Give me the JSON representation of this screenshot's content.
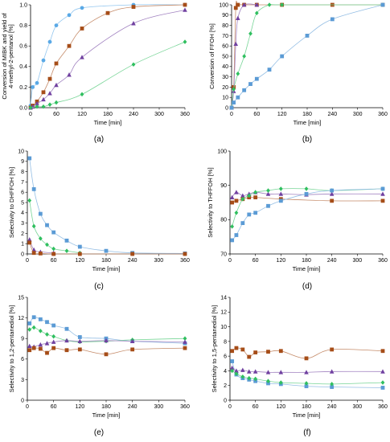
{
  "chart_data": [
    {
      "type": "scatter",
      "panel_label": "(a)",
      "xlabel": "Time [min]",
      "ylabel_lines": [
        "Conversion of MIBK and yield of",
        "4-methyl-2-pentanol [%]"
      ],
      "xlim": [
        0,
        360
      ],
      "ylim": [
        0,
        1
      ],
      "xticks": [
        0,
        60,
        120,
        180,
        240,
        300,
        360
      ],
      "yticks": [
        0,
        0.2,
        0.4,
        0.6,
        0.8,
        1
      ],
      "ytick_labels": [
        "0.0",
        "0.2",
        "0.4",
        "0.6",
        "0.8",
        "1.0"
      ],
      "grid": false,
      "series": [
        {
          "marker": "circle",
          "color": "#5aa9e6",
          "x": [
            0,
            5,
            15,
            30,
            45,
            60,
            90,
            120,
            240,
            360
          ],
          "y": [
            0.02,
            0.2,
            0.24,
            0.46,
            0.64,
            0.8,
            0.9,
            0.97,
            1.0,
            1.0
          ]
        },
        {
          "marker": "square",
          "color": "#a64d18",
          "x": [
            0,
            5,
            15,
            30,
            45,
            60,
            90,
            120,
            180,
            240,
            360
          ],
          "y": [
            0.0,
            0.02,
            0.06,
            0.15,
            0.28,
            0.43,
            0.6,
            0.77,
            0.92,
            0.98,
            1.0
          ]
        },
        {
          "marker": "triangle",
          "color": "#7040a0",
          "x": [
            0,
            5,
            15,
            30,
            45,
            60,
            90,
            120,
            240,
            360
          ],
          "y": [
            0.0,
            0.01,
            0.04,
            0.08,
            0.14,
            0.22,
            0.32,
            0.49,
            0.82,
            0.95
          ]
        },
        {
          "marker": "diamond",
          "color": "#2fbf5f",
          "x": [
            0,
            15,
            30,
            45,
            60,
            120,
            240,
            360
          ],
          "y": [
            0.0,
            0.01,
            0.01,
            0.03,
            0.05,
            0.13,
            0.42,
            0.64
          ]
        }
      ]
    },
    {
      "type": "scatter",
      "panel_label": "(b)",
      "xlabel": "Time [min]",
      "ylabel_lines": [
        "Conversion of FFOH [%]"
      ],
      "xlim": [
        0,
        360
      ],
      "ylim": [
        0,
        100
      ],
      "xticks": [
        0,
        60,
        120,
        180,
        240,
        300,
        360
      ],
      "yticks": [
        0,
        10,
        20,
        30,
        40,
        50,
        60,
        70,
        80,
        90,
        100
      ],
      "ytick_labels": [
        "0",
        "10",
        "20",
        "30",
        "40",
        "50",
        "60",
        "70",
        "80",
        "90",
        "100"
      ],
      "grid": false,
      "series": [
        {
          "marker": "square",
          "color": "#a64d18",
          "x": [
            0,
            5,
            10,
            15,
            30,
            60,
            120,
            240,
            360
          ],
          "y": [
            0,
            20,
            97,
            100,
            100,
            100,
            100,
            100,
            100
          ]
        },
        {
          "marker": "triangle",
          "color": "#7040a0",
          "x": [
            0,
            5,
            10,
            15,
            30,
            60
          ],
          "y": [
            0,
            16,
            62,
            87,
            100,
            100
          ]
        },
        {
          "marker": "diamond",
          "color": "#2fbf5f",
          "x": [
            0,
            5,
            15,
            30,
            45,
            60,
            90,
            120,
            360
          ],
          "y": [
            0,
            18,
            33,
            50,
            72,
            92,
            100,
            100,
            100
          ]
        },
        {
          "marker": "square",
          "color": "#5b9bd5",
          "x": [
            0,
            5,
            15,
            30,
            45,
            60,
            90,
            120,
            180,
            240,
            360
          ],
          "y": [
            0,
            5,
            10,
            17,
            23,
            28,
            37,
            50,
            70,
            86,
            100
          ]
        }
      ]
    },
    {
      "type": "scatter",
      "panel_label": "(c)",
      "xlabel": "Time [min]",
      "ylabel_lines": [
        "Selectivity to DHFFOH [%]"
      ],
      "xlim": [
        0,
        360
      ],
      "ylim": [
        0,
        10
      ],
      "xticks": [
        0,
        60,
        120,
        180,
        240,
        300,
        360
      ],
      "yticks": [
        0,
        1,
        2,
        3,
        4,
        5,
        6,
        7,
        8,
        9,
        10
      ],
      "ytick_labels": [
        "0",
        "1",
        "2",
        "3",
        "4",
        "5",
        "6",
        "7",
        "8",
        "9",
        "10"
      ],
      "grid": false,
      "series": [
        {
          "marker": "square",
          "color": "#5b9bd5",
          "x": [
            5,
            15,
            30,
            45,
            60,
            90,
            120,
            180,
            240,
            360
          ],
          "y": [
            9.3,
            6.3,
            3.9,
            2.8,
            2.1,
            1.3,
            0.7,
            0.3,
            0.1,
            0.05
          ]
        },
        {
          "marker": "diamond",
          "color": "#2fbf5f",
          "x": [
            5,
            15,
            30,
            45,
            60,
            90,
            120
          ],
          "y": [
            5.2,
            2.7,
            1.5,
            0.9,
            0.5,
            0.3,
            0.1
          ]
        },
        {
          "marker": "triangle",
          "color": "#7040a0",
          "x": [
            5,
            15,
            30,
            60
          ],
          "y": [
            1.4,
            0.4,
            0.2,
            0.1
          ]
        },
        {
          "marker": "square",
          "color": "#a64d18",
          "x": [
            5,
            15,
            30,
            60,
            120,
            240,
            360
          ],
          "y": [
            1.1,
            0.1,
            0.05,
            0.0,
            0.0,
            0.0,
            0.0
          ]
        }
      ]
    },
    {
      "type": "scatter",
      "panel_label": "(d)",
      "xlabel": "Time [min]",
      "ylabel_lines": [
        "Selectivity to THFFOH [%]"
      ],
      "xlim": [
        0,
        360
      ],
      "ylim": [
        70,
        100
      ],
      "xticks": [
        0,
        60,
        120,
        180,
        240,
        300,
        360
      ],
      "yticks": [
        70,
        80,
        90,
        100
      ],
      "ytick_labels": [
        "70",
        "80",
        "90",
        "100"
      ],
      "grid": false,
      "series": [
        {
          "marker": "triangle",
          "color": "#7040a0",
          "x": [
            5,
            15,
            30,
            45,
            60,
            90,
            120,
            180,
            240,
            360
          ],
          "y": [
            86.5,
            88,
            87,
            87.5,
            88,
            87.5,
            87.5,
            87.3,
            87.5,
            87.5
          ]
        },
        {
          "marker": "square",
          "color": "#a64d18",
          "x": [
            5,
            15,
            30,
            45,
            60,
            120,
            240,
            360
          ],
          "y": [
            85,
            85.5,
            86,
            86.5,
            86.5,
            86,
            85.5,
            85.5
          ]
        },
        {
          "marker": "diamond",
          "color": "#2fbf5f",
          "x": [
            5,
            15,
            30,
            45,
            60,
            90,
            120,
            180,
            240,
            360
          ],
          "y": [
            78,
            82,
            86,
            87,
            88,
            88.5,
            89,
            89,
            88.5,
            89
          ]
        },
        {
          "marker": "square",
          "color": "#5b9bd5",
          "x": [
            5,
            15,
            30,
            45,
            60,
            90,
            120,
            180,
            240,
            360
          ],
          "y": [
            74,
            75.5,
            79,
            81.5,
            82,
            84,
            85.5,
            87.5,
            88.5,
            89
          ]
        }
      ]
    },
    {
      "type": "scatter",
      "panel_label": "(e)",
      "xlabel": "Time [min]",
      "ylabel_lines": [
        "Selectivity to 1,2-pentanediol [%]"
      ],
      "xlim": [
        0,
        360
      ],
      "ylim": [
        0,
        15
      ],
      "xticks": [
        0,
        60,
        120,
        180,
        240,
        300,
        360
      ],
      "yticks": [
        0,
        3,
        6,
        9,
        12,
        15
      ],
      "ytick_labels": [
        "0",
        "3",
        "6",
        "9",
        "12",
        "15"
      ],
      "grid": false,
      "series": [
        {
          "marker": "square",
          "color": "#5b9bd5",
          "x": [
            5,
            15,
            30,
            45,
            60,
            90,
            120,
            180,
            240,
            360
          ],
          "y": [
            11.2,
            12.1,
            11.8,
            11.4,
            10.9,
            10.4,
            9.2,
            9.0,
            8.6,
            8.3
          ]
        },
        {
          "marker": "diamond",
          "color": "#2fbf5f",
          "x": [
            5,
            15,
            30,
            45,
            60,
            90,
            120,
            180,
            240,
            360
          ],
          "y": [
            10.3,
            10.6,
            10.1,
            9.6,
            9.3,
            8.7,
            8.5,
            8.6,
            8.8,
            9.0
          ]
        },
        {
          "marker": "triangle",
          "color": "#7040a0",
          "x": [
            5,
            15,
            30,
            45,
            60,
            90,
            120,
            180,
            240,
            360
          ],
          "y": [
            7.9,
            7.8,
            8.1,
            8.3,
            8.5,
            8.7,
            8.6,
            8.7,
            8.6,
            8.5
          ]
        },
        {
          "marker": "square",
          "color": "#a64d18",
          "x": [
            5,
            15,
            30,
            45,
            60,
            90,
            120,
            180,
            240,
            360
          ],
          "y": [
            7.3,
            7.6,
            7.5,
            6.9,
            7.6,
            7.3,
            7.4,
            6.7,
            7.4,
            7.6
          ]
        }
      ]
    },
    {
      "type": "scatter",
      "panel_label": "(f)",
      "xlabel": "Time [min]",
      "ylabel_lines": [
        "Selectivity to 1,5-pentanediol [%]"
      ],
      "xlim": [
        0,
        360
      ],
      "ylim": [
        0,
        14
      ],
      "xticks": [
        0,
        60,
        120,
        180,
        240,
        300,
        360
      ],
      "yticks": [
        0,
        2,
        4,
        6,
        8,
        10,
        12,
        14
      ],
      "ytick_labels": [
        "0",
        "2",
        "4",
        "6",
        "8",
        "10",
        "12",
        "14"
      ],
      "grid": false,
      "series": [
        {
          "marker": "square",
          "color": "#a64d18",
          "x": [
            5,
            15,
            30,
            45,
            60,
            90,
            120,
            180,
            240,
            360
          ],
          "y": [
            6.7,
            7.1,
            6.9,
            5.9,
            6.5,
            6.6,
            6.7,
            5.7,
            6.9,
            6.7
          ]
        },
        {
          "marker": "square",
          "color": "#5b9bd5",
          "x": [
            5,
            15,
            30,
            45,
            60,
            90,
            120,
            180,
            240,
            360
          ],
          "y": [
            5.3,
            3.5,
            3.0,
            2.8,
            2.6,
            2.3,
            2.2,
            1.9,
            1.8,
            1.7
          ]
        },
        {
          "marker": "triangle",
          "color": "#7040a0",
          "x": [
            5,
            15,
            30,
            45,
            60,
            90,
            120,
            180,
            240,
            360
          ],
          "y": [
            4.4,
            4.0,
            4.1,
            3.9,
            3.9,
            3.8,
            3.8,
            3.8,
            3.9,
            3.9
          ]
        },
        {
          "marker": "diamond",
          "color": "#2fbf5f",
          "x": [
            5,
            15,
            30,
            45,
            60,
            90,
            120,
            180,
            240,
            360
          ],
          "y": [
            4.0,
            3.6,
            3.2,
            3.0,
            2.9,
            2.6,
            2.4,
            2.3,
            2.2,
            2.4
          ]
        }
      ]
    }
  ]
}
